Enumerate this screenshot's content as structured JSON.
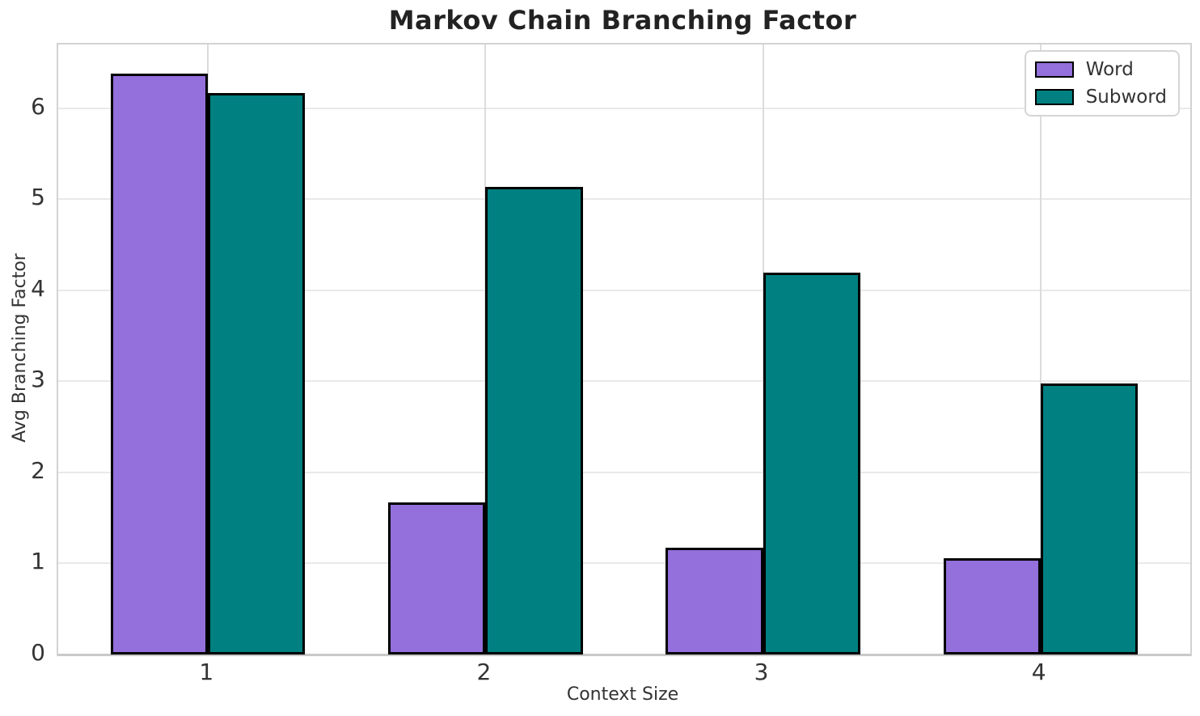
{
  "chart_data": {
    "type": "bar",
    "title": "Markov Chain Branching Factor",
    "xlabel": "Context Size",
    "ylabel": "Avg Branching Factor",
    "categories": [
      "1",
      "2",
      "3",
      "4"
    ],
    "series": [
      {
        "name": "Word",
        "color": "#9370db",
        "values": [
          6.38,
          1.67,
          1.17,
          1.06
        ]
      },
      {
        "name": "Subword",
        "color": "#008080",
        "values": [
          6.17,
          5.14,
          4.19,
          2.98
        ]
      }
    ],
    "yticks": [
      0,
      1,
      2,
      3,
      4,
      5,
      6
    ],
    "ylim": [
      0,
      6.7
    ],
    "bar_width": 0.35,
    "bar_edge_color": "#000000",
    "grid": true,
    "legend_position": "upper right"
  },
  "colors": {
    "background": "#ffffff",
    "grid_horizontal": "#e9e9e9",
    "grid_vertical": "#dcdcdc",
    "plot_border": "#d2d2d2",
    "text": "#262626"
  }
}
